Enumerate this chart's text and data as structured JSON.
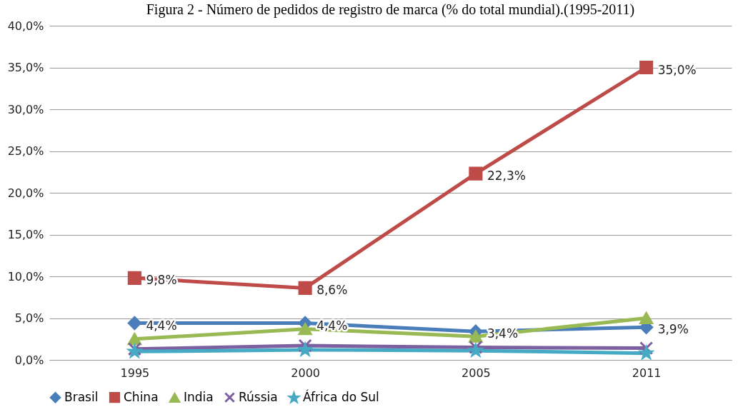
{
  "chart_data": {
    "type": "line",
    "title": "Figura 2 - Número de pedidos de registro de marca (% do total mundial).(1995-2011)",
    "categories": [
      "1995",
      "2000",
      "2005",
      "2011"
    ],
    "series": [
      {
        "name": "Brasil",
        "color": "#4a7ebb",
        "marker": "diamond",
        "values": [
          4.4,
          4.4,
          3.4,
          3.9
        ],
        "value_labels": [
          "4,4%",
          "4,4%",
          "3,4%",
          "3,9%"
        ]
      },
      {
        "name": "China",
        "color": "#be4b48",
        "marker": "square",
        "values": [
          9.8,
          8.6,
          22.3,
          35.0
        ],
        "value_labels": [
          "9,8%",
          "8,6%",
          "22,3%",
          "35,0%"
        ]
      },
      {
        "name": "India",
        "color": "#98b954",
        "marker": "triangle",
        "values": [
          2.5,
          3.7,
          2.8,
          5.0
        ]
      },
      {
        "name": "Rússia",
        "color": "#7d60a0",
        "marker": "cross",
        "values": [
          1.3,
          1.7,
          1.5,
          1.4
        ]
      },
      {
        "name": "África do Sul",
        "color": "#46aac5",
        "marker": "star",
        "values": [
          1.0,
          1.2,
          1.1,
          0.8
        ]
      }
    ],
    "ylim": [
      0,
      40
    ],
    "yticks": [
      {
        "value": 0,
        "label": "0,0%"
      },
      {
        "value": 5,
        "label": "5,0%"
      },
      {
        "value": 10,
        "label": "10,0%"
      },
      {
        "value": 15,
        "label": "15,0%"
      },
      {
        "value": 20,
        "label": "20,0%"
      },
      {
        "value": 25,
        "label": "25,0%"
      },
      {
        "value": 30,
        "label": "30,0%"
      },
      {
        "value": 35,
        "label": "35,0%"
      },
      {
        "value": 40,
        "label": "40,0%"
      }
    ],
    "grid": "y",
    "legend": "bottom",
    "line_style": "solid"
  }
}
